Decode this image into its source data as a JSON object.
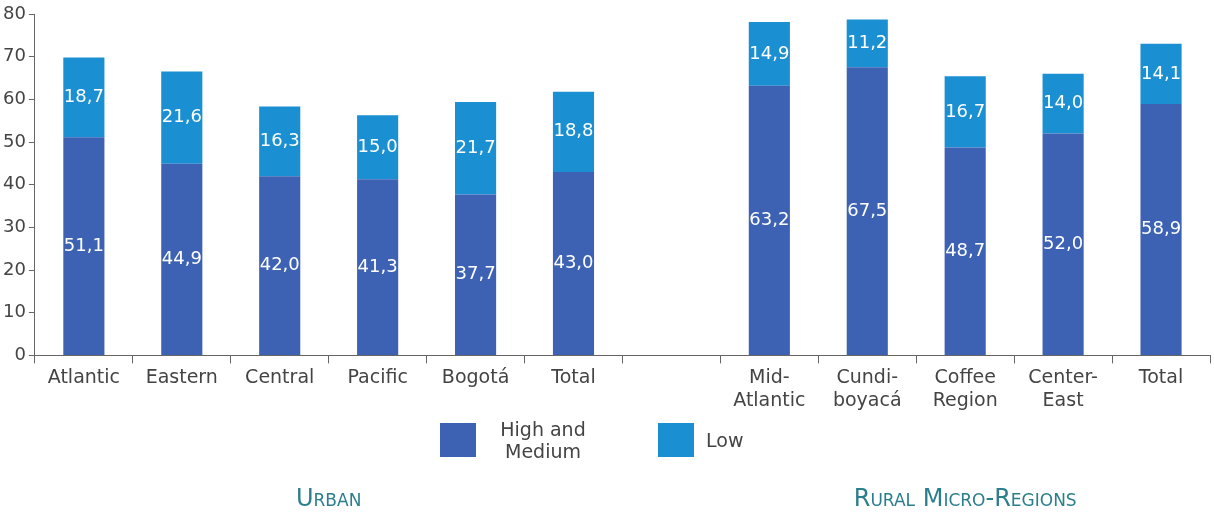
{
  "chart_data": {
    "type": "bar",
    "stacked": true,
    "categories": [
      "Atlantic",
      "Eastern",
      "Central",
      "Pacific",
      "Bogotá",
      "Total",
      null,
      "Mid-Atlantic",
      "Cundi-boyacá",
      "Coffee Region",
      "Center-East",
      "Total"
    ],
    "series": [
      {
        "name": "High and Medium",
        "color": "#3d62b4",
        "values": [
          51.1,
          44.9,
          42.0,
          41.3,
          37.7,
          43.0,
          null,
          63.2,
          67.5,
          48.7,
          52.0,
          58.9
        ],
        "value_labels": [
          "51,1",
          "44,9",
          "42,0",
          "41,3",
          "37,7",
          "43,0",
          null,
          "63,2",
          "67,5",
          "48,7",
          "52,0",
          "58,9"
        ]
      },
      {
        "name": "Low",
        "color": "#1a8fd2",
        "values": [
          18.7,
          21.6,
          16.3,
          15.0,
          21.7,
          18.8,
          null,
          14.9,
          11.2,
          16.7,
          14.0,
          14.1
        ],
        "value_labels": [
          "18,7",
          "21,6",
          "16,3",
          "15,0",
          "21,7",
          "18,8",
          null,
          "14,9",
          "11,2",
          "16,7",
          "14,0",
          "14,1"
        ]
      }
    ],
    "ylim": [
      0,
      80
    ],
    "yticks": [
      0,
      10,
      20,
      30,
      40,
      50,
      60,
      70,
      80
    ],
    "grid": false,
    "legend": "bottom",
    "annotations": [
      "Urban",
      "Rural Micro-Regions"
    ]
  }
}
